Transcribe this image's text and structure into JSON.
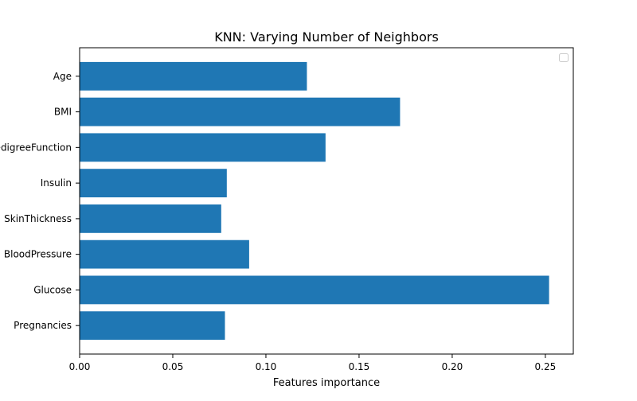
{
  "chart_data": {
    "type": "bar",
    "orientation": "horizontal",
    "title": "KNN: Varying Number of Neighbors",
    "xlabel": "Features importance",
    "ylabel": "",
    "categories": [
      "Pregnancies",
      "Glucose",
      "BloodPressure",
      "SkinThickness",
      "Insulin",
      "DiabetesPedigreeFunction",
      "BMI",
      "Age"
    ],
    "values": [
      0.078,
      0.252,
      0.091,
      0.076,
      0.079,
      0.132,
      0.172,
      0.122
    ],
    "xlim": [
      0,
      0.265
    ],
    "xticks": [
      0.0,
      0.05,
      0.1,
      0.15,
      0.2,
      0.25
    ],
    "xtick_labels": [
      "0.00",
      "0.05",
      "0.10",
      "0.15",
      "0.20",
      "0.25"
    ],
    "bar_color": "#1f77b4",
    "grid": false,
    "legend": {
      "placement": "upper right",
      "entries": []
    }
  }
}
